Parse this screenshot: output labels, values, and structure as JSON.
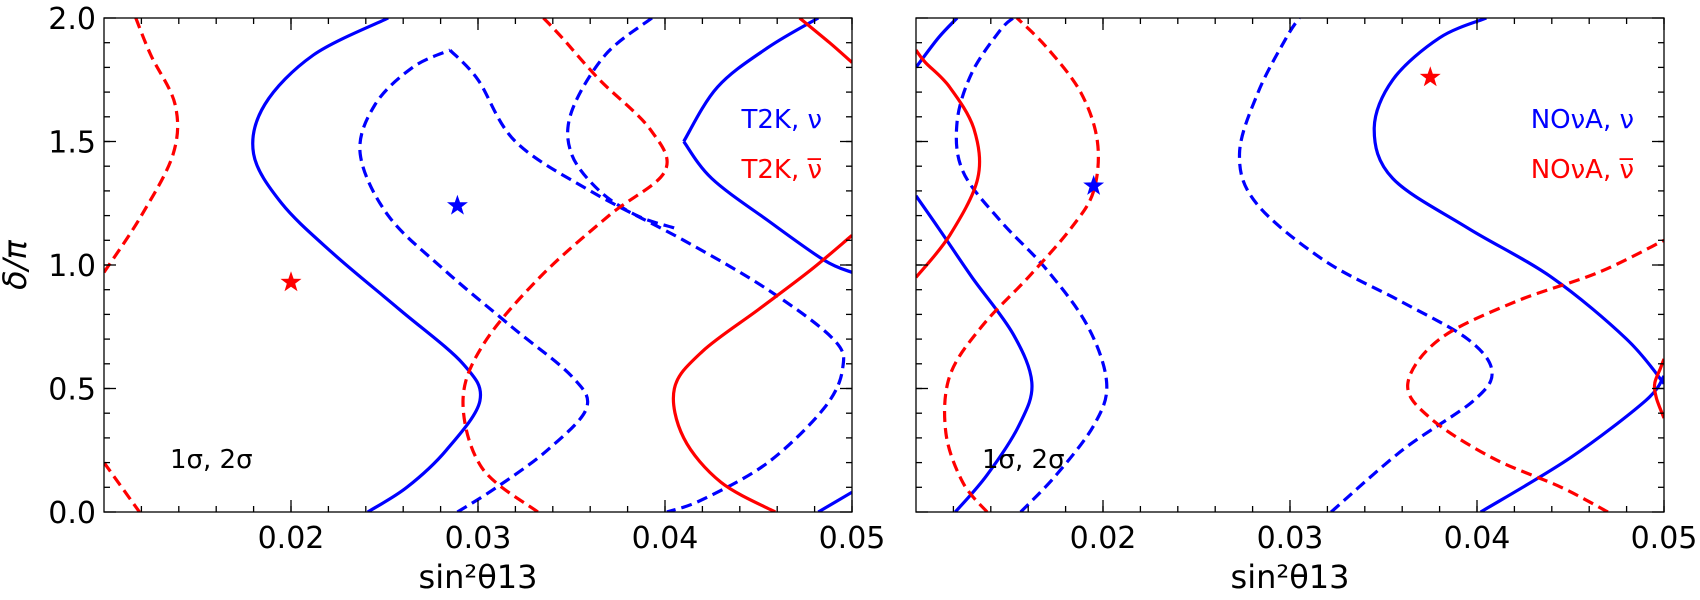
{
  "chart_data": [
    {
      "type": "line",
      "panel": "left",
      "xlabel": "sin²θ13",
      "ylabel": "δ/π",
      "xlim": [
        0.01,
        0.05
      ],
      "ylim": [
        0.0,
        2.0
      ],
      "xticks": [
        {
          "value": 0.02,
          "label": "0.02"
        },
        {
          "value": 0.03,
          "label": "0.03"
        },
        {
          "value": 0.04,
          "label": "0.04"
        },
        {
          "value": 0.05,
          "label": "0.05"
        }
      ],
      "yticks": [
        {
          "value": 0.0,
          "label": "0.0"
        },
        {
          "value": 0.5,
          "label": "0.5"
        },
        {
          "value": 1.0,
          "label": "1.0"
        },
        {
          "value": 1.5,
          "label": "1.5"
        },
        {
          "value": 2.0,
          "label": "2.0"
        }
      ],
      "legend": [
        {
          "text": "T2K, ν",
          "color": "#0000ff"
        },
        {
          "text": "T2K, ν̅",
          "color": "#ff0000"
        }
      ],
      "annotation": "1σ, 2σ",
      "series": [
        {
          "name": "T2K ν 1σ",
          "color": "#0000ff",
          "dash": "solid",
          "segments": [
            [
              [
                0.0241,
                0.0
              ],
              [
                0.0262,
                0.1
              ],
              [
                0.0283,
                0.25
              ],
              [
                0.0301,
                0.45
              ],
              [
                0.0292,
                0.6
              ],
              [
                0.0258,
                0.82
              ],
              [
                0.0222,
                1.05
              ],
              [
                0.0195,
                1.25
              ],
              [
                0.018,
                1.45
              ],
              [
                0.0186,
                1.65
              ],
              [
                0.0212,
                1.85
              ],
              [
                0.0252,
                2.0
              ]
            ],
            [
              [
                0.041,
                1.5
              ],
              [
                0.0425,
                1.35
              ],
              [
                0.0455,
                1.18
              ],
              [
                0.0485,
                1.02
              ],
              [
                0.05,
                0.97
              ]
            ],
            [
              [
                0.041,
                1.5
              ],
              [
                0.0428,
                1.72
              ],
              [
                0.0455,
                1.88
              ],
              [
                0.0482,
                2.0
              ]
            ],
            [
              [
                0.0482,
                0.0
              ],
              [
                0.05,
                0.08
              ]
            ]
          ]
        },
        {
          "name": "T2K ν 2σ",
          "color": "#0000ff",
          "dash": "dashed",
          "segments": [
            [
              [
                0.0289,
                0.0
              ],
              [
                0.031,
                0.1
              ],
              [
                0.0337,
                0.25
              ],
              [
                0.0358,
                0.42
              ],
              [
                0.035,
                0.55
              ],
              [
                0.0318,
                0.75
              ],
              [
                0.0282,
                0.98
              ],
              [
                0.0252,
                1.2
              ],
              [
                0.0237,
                1.45
              ],
              [
                0.0245,
                1.65
              ],
              [
                0.0265,
                1.8
              ],
              [
                0.0285,
                1.87
              ]
            ],
            [
              [
                0.0285,
                1.87
              ],
              [
                0.03,
                1.75
              ],
              [
                0.032,
                1.5
              ],
              [
                0.036,
                1.3
              ],
              [
                0.041,
                1.1
              ],
              [
                0.0455,
                0.9
              ],
              [
                0.049,
                0.7
              ],
              [
                0.0495,
                0.58
              ],
              [
                0.0485,
                0.42
              ],
              [
                0.0455,
                0.2
              ],
              [
                0.042,
                0.05
              ],
              [
                0.0401,
                0.0
              ]
            ],
            [
              [
                0.0393,
                2.0
              ],
              [
                0.0368,
                1.85
              ],
              [
                0.035,
                1.62
              ],
              [
                0.035,
                1.45
              ],
              [
                0.0365,
                1.3
              ],
              [
                0.0385,
                1.2
              ],
              [
                0.0405,
                1.15
              ]
            ]
          ]
        },
        {
          "name": "T2K ν̅ 1σ",
          "color": "#ff0000",
          "dash": "solid",
          "segments": [
            [
              [
                0.0459,
                0.0
              ],
              [
                0.043,
                0.12
              ],
              [
                0.041,
                0.3
              ],
              [
                0.0405,
                0.5
              ],
              [
                0.042,
                0.65
              ],
              [
                0.045,
                0.82
              ],
              [
                0.0478,
                0.98
              ],
              [
                0.05,
                1.12
              ]
            ],
            [
              [
                0.0472,
                2.0
              ],
              [
                0.0488,
                1.9
              ],
              [
                0.05,
                1.82
              ]
            ]
          ]
        },
        {
          "name": "T2K ν̅ 2σ",
          "color": "#ff0000",
          "dash": "dashed",
          "segments": [
            [
              [
                0.01,
                0.97
              ],
              [
                0.012,
                1.2
              ],
              [
                0.0137,
                1.45
              ],
              [
                0.0138,
                1.65
              ],
              [
                0.0125,
                1.85
              ],
              [
                0.0117,
                2.0
              ]
            ],
            [
              [
                0.01,
                0.2
              ],
              [
                0.0119,
                0.0
              ]
            ],
            [
              [
                0.0332,
                0.0
              ],
              [
                0.0302,
                0.18
              ],
              [
                0.0292,
                0.45
              ],
              [
                0.0303,
                0.68
              ],
              [
                0.0333,
                0.95
              ],
              [
                0.037,
                1.2
              ],
              [
                0.04,
                1.38
              ],
              [
                0.0392,
                1.55
              ],
              [
                0.0365,
                1.75
              ],
              [
                0.0345,
                1.92
              ],
              [
                0.0335,
                2.0
              ]
            ]
          ]
        }
      ],
      "markers": [
        {
          "x": 0.0289,
          "y": 1.24,
          "color": "#0000ff",
          "symbol": "star"
        },
        {
          "x": 0.02,
          "y": 0.93,
          "color": "#ff0000",
          "symbol": "star"
        }
      ]
    },
    {
      "type": "line",
      "panel": "right",
      "xlabel": "sin²θ13",
      "ylabel": "",
      "xlim": [
        0.01,
        0.05
      ],
      "ylim": [
        0.0,
        2.0
      ],
      "xticks": [
        {
          "value": 0.02,
          "label": "0.02"
        },
        {
          "value": 0.03,
          "label": "0.03"
        },
        {
          "value": 0.04,
          "label": "0.04"
        },
        {
          "value": 0.05,
          "label": "0.05"
        }
      ],
      "yticks": [
        {
          "value": 0.0,
          "label": ""
        },
        {
          "value": 0.5,
          "label": ""
        },
        {
          "value": 1.0,
          "label": ""
        },
        {
          "value": 1.5,
          "label": ""
        },
        {
          "value": 2.0,
          "label": ""
        }
      ],
      "legend": [
        {
          "text": "NOνA, ν",
          "color": "#0000ff"
        },
        {
          "text": "NOνA, ν̅",
          "color": "#ff0000"
        }
      ],
      "annotation": "1σ, 2σ",
      "series": [
        {
          "name": "NOvA ν 1σ",
          "color": "#0000ff",
          "dash": "solid",
          "segments": [
            [
              [
                0.0121,
                0.0
              ],
              [
                0.0138,
                0.15
              ],
              [
                0.0155,
                0.35
              ],
              [
                0.0162,
                0.52
              ],
              [
                0.0152,
                0.72
              ],
              [
                0.013,
                0.95
              ],
              [
                0.0112,
                1.15
              ],
              [
                0.01,
                1.28
              ]
            ],
            [
              [
                0.01,
                1.8
              ],
              [
                0.0112,
                1.92
              ],
              [
                0.0122,
                2.0
              ]
            ],
            [
              [
                0.0402,
                0.0
              ],
              [
                0.045,
                0.22
              ],
              [
                0.049,
                0.45
              ],
              [
                0.05,
                0.55
              ]
            ],
            [
              [
                0.05,
                0.52
              ],
              [
                0.048,
                0.7
              ],
              [
                0.044,
                0.95
              ],
              [
                0.0395,
                1.15
              ],
              [
                0.0355,
                1.35
              ],
              [
                0.0345,
                1.55
              ],
              [
                0.0355,
                1.75
              ],
              [
                0.038,
                1.92
              ],
              [
                0.0405,
                2.0
              ]
            ]
          ]
        },
        {
          "name": "NOvA ν 2σ",
          "color": "#0000ff",
          "dash": "dashed",
          "segments": [
            [
              [
                0.0156,
                0.0
              ],
              [
                0.0175,
                0.15
              ],
              [
                0.0195,
                0.35
              ],
              [
                0.0202,
                0.52
              ],
              [
                0.0192,
                0.75
              ],
              [
                0.017,
                0.98
              ],
              [
                0.0145,
                1.18
              ],
              [
                0.0125,
                1.38
              ],
              [
                0.0122,
                1.58
              ],
              [
                0.013,
                1.78
              ],
              [
                0.0145,
                1.95
              ],
              [
                0.0152,
                2.0
              ]
            ],
            [
              [
                0.0322,
                0.0
              ],
              [
                0.036,
                0.25
              ],
              [
                0.0398,
                0.45
              ],
              [
                0.0408,
                0.57
              ],
              [
                0.0395,
                0.7
              ],
              [
                0.036,
                0.85
              ],
              [
                0.0318,
                1.02
              ],
              [
                0.0282,
                1.25
              ],
              [
                0.0273,
                1.45
              ],
              [
                0.0283,
                1.7
              ],
              [
                0.0298,
                1.92
              ],
              [
                0.0305,
                2.0
              ]
            ]
          ]
        },
        {
          "name": "NOvA ν̅ 1σ",
          "color": "#ff0000",
          "dash": "solid",
          "segments": [
            [
              [
                0.01,
                0.95
              ],
              [
                0.0118,
                1.12
              ],
              [
                0.0133,
                1.35
              ],
              [
                0.0131,
                1.55
              ],
              [
                0.0118,
                1.72
              ],
              [
                0.0105,
                1.82
              ],
              [
                0.01,
                1.87
              ]
            ],
            [
              [
                0.05,
                0.38
              ],
              [
                0.0496,
                0.46
              ],
              [
                0.0495,
                0.52
              ],
              [
                0.0498,
                0.58
              ],
              [
                0.05,
                0.62
              ]
            ]
          ]
        },
        {
          "name": "NOvA ν̅ 2σ",
          "color": "#ff0000",
          "dash": "dashed",
          "segments": [
            [
              [
                0.0138,
                0.0
              ],
              [
                0.0125,
                0.12
              ],
              [
                0.0116,
                0.32
              ],
              [
                0.0118,
                0.55
              ],
              [
                0.0135,
                0.75
              ],
              [
                0.016,
                0.95
              ],
              [
                0.0183,
                1.15
              ],
              [
                0.0195,
                1.3
              ],
              [
                0.0197,
                1.5
              ],
              [
                0.0188,
                1.7
              ],
              [
                0.017,
                1.88
              ],
              [
                0.0154,
                2.0
              ]
            ],
            [
              [
                0.047,
                0.0
              ],
              [
                0.0445,
                0.1
              ],
              [
                0.0408,
                0.22
              ],
              [
                0.0375,
                0.38
              ],
              [
                0.0363,
                0.52
              ],
              [
                0.038,
                0.7
              ],
              [
                0.042,
                0.85
              ],
              [
                0.0465,
                0.97
              ],
              [
                0.05,
                1.1
              ]
            ]
          ]
        }
      ],
      "markers": [
        {
          "x": 0.0195,
          "y": 1.32,
          "color": "#0000ff",
          "symbol": "star"
        },
        {
          "x": 0.0375,
          "y": 1.76,
          "color": "#ff0000",
          "symbol": "star"
        }
      ]
    }
  ]
}
